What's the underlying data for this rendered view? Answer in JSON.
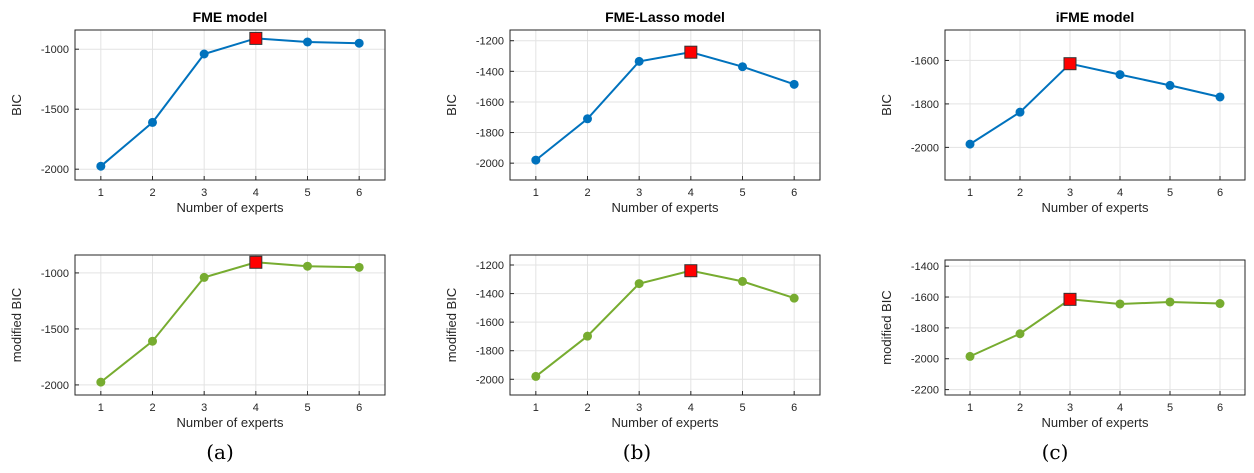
{
  "chart_data": [
    {
      "type": "line",
      "title": "FME model",
      "xlabel": "Number of experts",
      "ylabel": "BIC",
      "x": [
        1,
        2,
        3,
        4,
        5,
        6
      ],
      "series": [
        {
          "values": [
            -1975,
            -1610,
            -1040,
            -910,
            -940,
            -950
          ]
        }
      ],
      "selected_x": 4,
      "xlim": [
        0.5,
        6.5
      ],
      "ylim": [
        -2090,
        -840
      ],
      "xticks": [
        1,
        2,
        3,
        4,
        5,
        6
      ],
      "yticks": [
        -2000,
        -1500,
        -1000
      ],
      "grid": true,
      "color": "#0072BD",
      "marker_color": "#FF0000"
    },
    {
      "type": "line",
      "title": "FME-Lasso model",
      "xlabel": "Number of experts",
      "ylabel": "BIC",
      "x": [
        1,
        2,
        3,
        4,
        5,
        6
      ],
      "series": [
        {
          "values": [
            -1980,
            -1710,
            -1335,
            -1275,
            -1370,
            -1485
          ]
        }
      ],
      "selected_x": 4,
      "xlim": [
        0.5,
        6.5
      ],
      "ylim": [
        -2110,
        -1130
      ],
      "xticks": [
        1,
        2,
        3,
        4,
        5,
        6
      ],
      "yticks": [
        -2000,
        -1800,
        -1600,
        -1400,
        -1200
      ],
      "grid": true,
      "color": "#0072BD",
      "marker_color": "#FF0000"
    },
    {
      "type": "line",
      "title": "iFME model",
      "xlabel": "Number of experts",
      "ylabel": "BIC",
      "x": [
        1,
        2,
        3,
        4,
        5,
        6
      ],
      "series": [
        {
          "values": [
            -1985,
            -1838,
            -1615,
            -1665,
            -1715,
            -1768
          ]
        }
      ],
      "selected_x": 3,
      "xlim": [
        0.5,
        6.5
      ],
      "ylim": [
        -2150,
        -1460
      ],
      "xticks": [
        1,
        2,
        3,
        4,
        5,
        6
      ],
      "yticks": [
        -2000,
        -1800,
        -1600
      ],
      "grid": true,
      "color": "#0072BD",
      "marker_color": "#FF0000"
    },
    {
      "type": "line",
      "title": "",
      "xlabel": "Number of experts",
      "ylabel": "modified BIC",
      "x": [
        1,
        2,
        3,
        4,
        5,
        6
      ],
      "series": [
        {
          "values": [
            -1975,
            -1610,
            -1040,
            -905,
            -940,
            -950
          ]
        }
      ],
      "selected_x": 4,
      "xlim": [
        0.5,
        6.5
      ],
      "ylim": [
        -2090,
        -840
      ],
      "xticks": [
        1,
        2,
        3,
        4,
        5,
        6
      ],
      "yticks": [
        -2000,
        -1500,
        -1000
      ],
      "grid": true,
      "color": "#77AC30",
      "marker_color": "#FF0000"
    },
    {
      "type": "line",
      "title": "",
      "xlabel": "Number of experts",
      "ylabel": "modified BIC",
      "x": [
        1,
        2,
        3,
        4,
        5,
        6
      ],
      "series": [
        {
          "values": [
            -1980,
            -1698,
            -1330,
            -1240,
            -1315,
            -1432
          ]
        }
      ],
      "selected_x": 4,
      "xlim": [
        0.5,
        6.5
      ],
      "ylim": [
        -2110,
        -1130
      ],
      "xticks": [
        1,
        2,
        3,
        4,
        5,
        6
      ],
      "yticks": [
        -2000,
        -1800,
        -1600,
        -1400,
        -1200
      ],
      "grid": true,
      "color": "#77AC30",
      "marker_color": "#FF0000"
    },
    {
      "type": "line",
      "title": "",
      "xlabel": "Number of experts",
      "ylabel": "modified BIC",
      "x": [
        1,
        2,
        3,
        4,
        5,
        6
      ],
      "series": [
        {
          "values": [
            -1985,
            -1838,
            -1615,
            -1645,
            -1632,
            -1642
          ]
        }
      ],
      "selected_x": 3,
      "xlim": [
        0.5,
        6.5
      ],
      "ylim": [
        -2235,
        -1360
      ],
      "xticks": [
        1,
        2,
        3,
        4,
        5,
        6
      ],
      "yticks": [
        -2200,
        -2000,
        -1800,
        -1600,
        -1400
      ],
      "grid": true,
      "color": "#77AC30",
      "marker_color": "#FF0000"
    }
  ],
  "captions": [
    "(a)",
    "(b)",
    "(c)"
  ]
}
